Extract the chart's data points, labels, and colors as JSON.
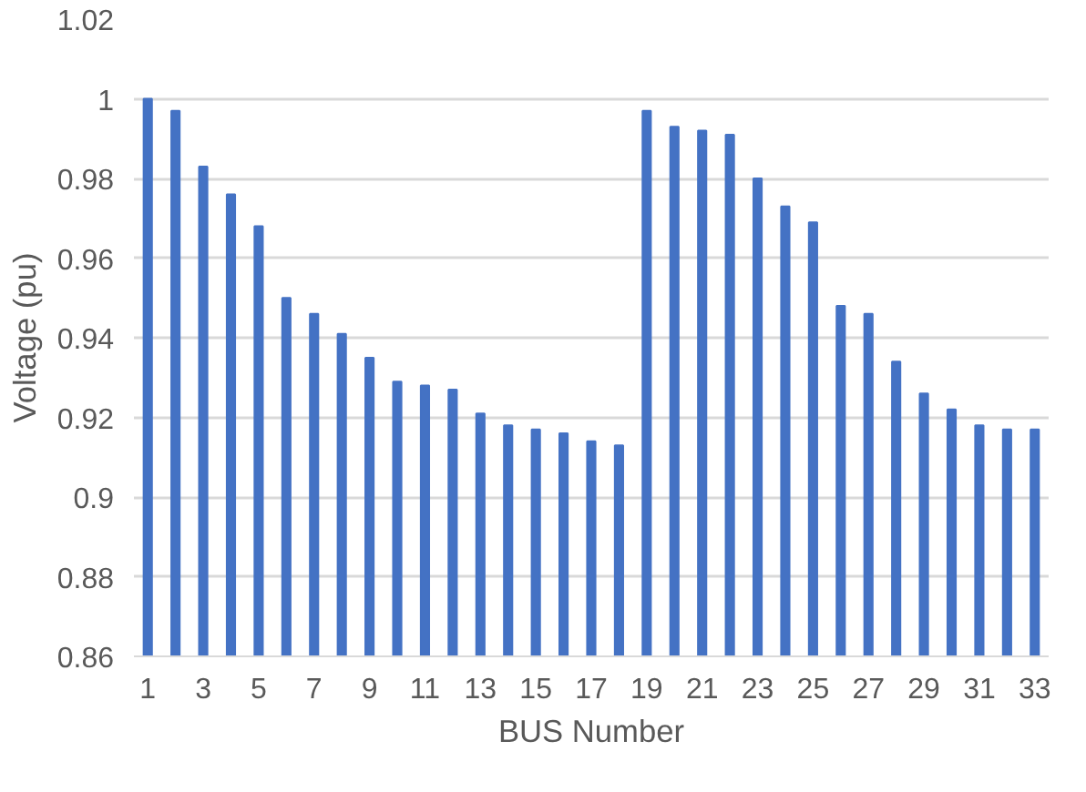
{
  "chart_data": {
    "type": "bar",
    "xlabel": "BUS Number",
    "ylabel": "Voltage (pu)",
    "x": [
      1,
      2,
      3,
      4,
      5,
      6,
      7,
      8,
      9,
      10,
      11,
      12,
      13,
      14,
      15,
      16,
      17,
      18,
      19,
      20,
      21,
      22,
      23,
      24,
      25,
      26,
      27,
      28,
      29,
      30,
      31,
      32,
      33
    ],
    "values": [
      1.0,
      0.997,
      0.983,
      0.976,
      0.968,
      0.95,
      0.946,
      0.941,
      0.935,
      0.929,
      0.928,
      0.927,
      0.921,
      0.918,
      0.917,
      0.916,
      0.914,
      0.913,
      0.997,
      0.993,
      0.992,
      0.991,
      0.98,
      0.973,
      0.969,
      0.948,
      0.946,
      0.934,
      0.926,
      0.922,
      0.918,
      0.917,
      0.917
    ],
    "color": "#4472c4",
    "xlim": [
      0.5,
      33.5
    ],
    "xticks": [
      1,
      3,
      5,
      7,
      9,
      11,
      13,
      15,
      17,
      19,
      21,
      23,
      25,
      27,
      29,
      31,
      33
    ],
    "ylim": [
      0.86,
      1.02
    ],
    "yticks": [
      0.86,
      0.88,
      0.9,
      0.92,
      0.94,
      0.96,
      0.98,
      1,
      1.02
    ],
    "grid": "y"
  }
}
